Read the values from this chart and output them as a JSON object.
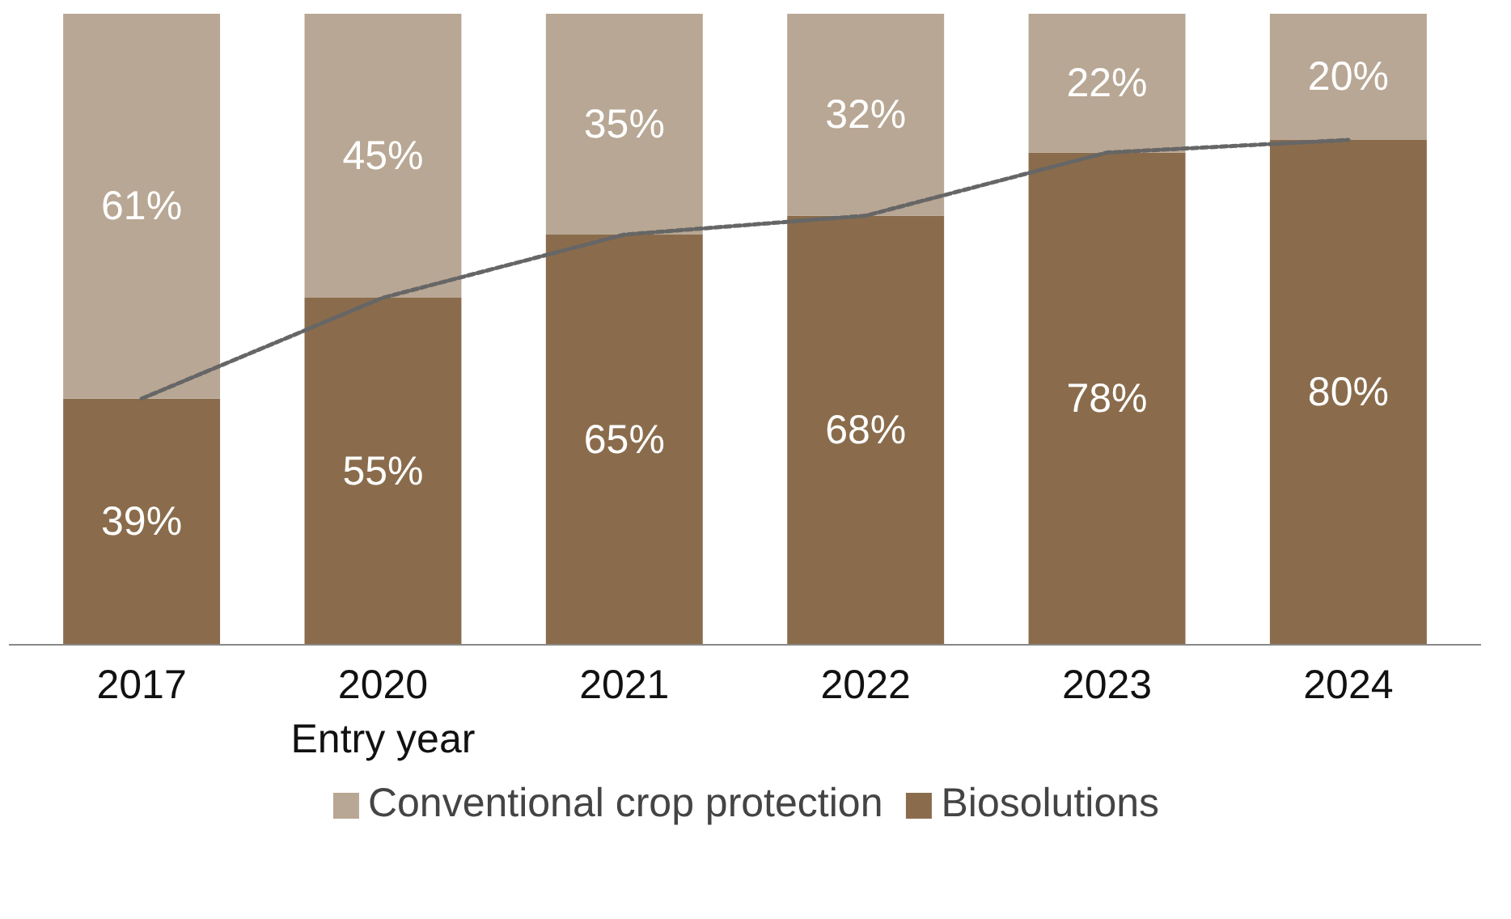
{
  "chart_data": {
    "type": "bar",
    "stacked": true,
    "categories": [
      "2017",
      "2020\nEntry year",
      "2021",
      "2022",
      "2023",
      "2024"
    ],
    "series": [
      {
        "name": "Biosolutions",
        "color": "#8a6c4c",
        "values": [
          39,
          55,
          65,
          68,
          78,
          80
        ],
        "value_labels": [
          "39%",
          "55%",
          "65%",
          "68%",
          "78%",
          "80%"
        ]
      },
      {
        "name": "Conventional crop protection",
        "color": "#b8a794",
        "values": [
          61,
          45,
          35,
          32,
          22,
          20
        ],
        "value_labels": [
          "61%",
          "45%",
          "35%",
          "32%",
          "22%",
          "20%"
        ]
      },
      {
        "type": "line",
        "color": "#666666",
        "line_style": "dashed",
        "values": [
          39,
          55,
          65,
          68,
          78,
          80
        ]
      }
    ],
    "legend": "bottom",
    "grid": false,
    "tick_labels": "x"
  }
}
